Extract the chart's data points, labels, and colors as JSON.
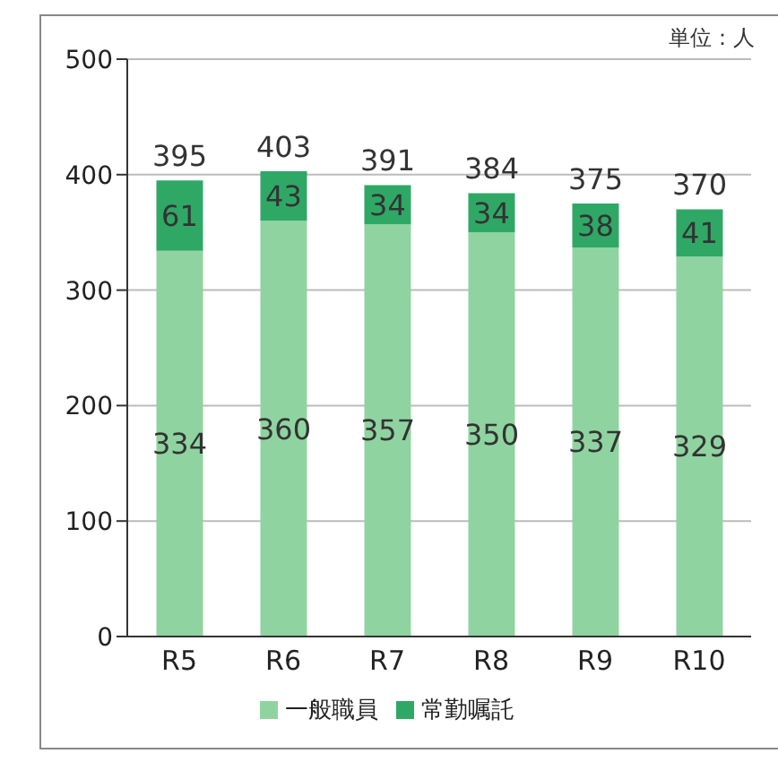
{
  "chart_data": {
    "type": "bar",
    "stacked": true,
    "categories": [
      "R5",
      "R6",
      "R7",
      "R8",
      "R9",
      "R10"
    ],
    "series": [
      {
        "name": "一般職員",
        "color": "#8fd4a0",
        "values": [
          334,
          360,
          357,
          350,
          337,
          329
        ]
      },
      {
        "name": "常勤嘱託",
        "color": "#2fa866",
        "values": [
          61,
          43,
          34,
          34,
          38,
          41
        ]
      }
    ],
    "ylim": [
      0,
      500
    ],
    "yticks": [
      0,
      100,
      200,
      300,
      400,
      500
    ],
    "grid": "y",
    "legend": "bottom",
    "data_labels": true,
    "totals": [
      "395",
      "403",
      "391",
      "384",
      "375",
      "370"
    ],
    "annotations": [
      "単位：人"
    ]
  }
}
